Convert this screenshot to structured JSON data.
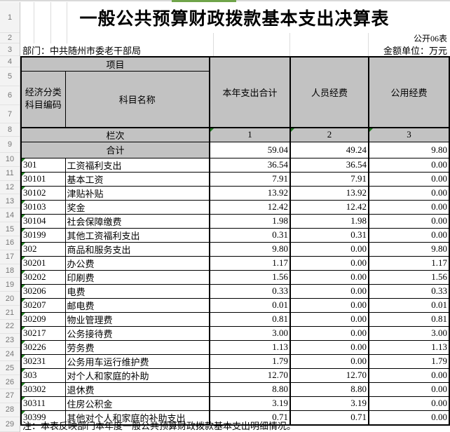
{
  "title": "一般公共预算财政拨款基本支出决算表",
  "form_label": "公开06表",
  "meta": {
    "department": "部门：中共随州市委老干部局",
    "unit": "金额单位：万元"
  },
  "table": {
    "header": {
      "project": "项目",
      "code_column": "经济分类科目编码",
      "name_column": "科目名称",
      "value_columns": [
        "本年支出合计",
        "人员经费",
        "公用经费"
      ]
    },
    "index_row": {
      "label": "栏次",
      "indices": [
        "1",
        "2",
        "3"
      ]
    },
    "total_row": {
      "label": "合计",
      "values": [
        "59.04",
        "49.24",
        "9.80"
      ]
    },
    "rows": [
      {
        "code": "301",
        "name": "工资福利支出",
        "level": 0,
        "values": [
          "36.54",
          "36.54",
          "0.00"
        ]
      },
      {
        "code": "30101",
        "name": "基本工资",
        "level": 1,
        "values": [
          "7.91",
          "7.91",
          "0.00"
        ]
      },
      {
        "code": "30102",
        "name": "津贴补贴",
        "level": 1,
        "values": [
          "13.92",
          "13.92",
          "0.00"
        ]
      },
      {
        "code": "30103",
        "name": "奖金",
        "level": 1,
        "values": [
          "12.42",
          "12.42",
          "0.00"
        ]
      },
      {
        "code": "30104",
        "name": "社会保障缴费",
        "level": 1,
        "values": [
          "1.98",
          "1.98",
          "0.00"
        ]
      },
      {
        "code": "30199",
        "name": "其他工资福利支出",
        "level": 1,
        "values": [
          "0.31",
          "0.31",
          "0.00"
        ]
      },
      {
        "code": "302",
        "name": "商品和服务支出",
        "level": 0,
        "values": [
          "9.80",
          "0.00",
          "9.80"
        ]
      },
      {
        "code": "30201",
        "name": "办公费",
        "level": 1,
        "values": [
          "1.17",
          "0.00",
          "1.17"
        ]
      },
      {
        "code": "30202",
        "name": "印刷费",
        "level": 1,
        "values": [
          "1.56",
          "0.00",
          "1.56"
        ]
      },
      {
        "code": "30206",
        "name": "电费",
        "level": 1,
        "values": [
          "0.33",
          "0.00",
          "0.33"
        ]
      },
      {
        "code": "30207",
        "name": "邮电费",
        "level": 1,
        "values": [
          "0.01",
          "0.00",
          "0.01"
        ]
      },
      {
        "code": "30209",
        "name": "物业管理费",
        "level": 1,
        "values": [
          "0.81",
          "0.00",
          "0.81"
        ]
      },
      {
        "code": "30217",
        "name": "公务接待费",
        "level": 1,
        "values": [
          "3.00",
          "0.00",
          "3.00"
        ]
      },
      {
        "code": "30226",
        "name": "劳务费",
        "level": 1,
        "values": [
          "1.13",
          "0.00",
          "1.13"
        ]
      },
      {
        "code": "30231",
        "name": "公务用车运行维护费",
        "level": 1,
        "values": [
          "1.79",
          "0.00",
          "1.79"
        ]
      },
      {
        "code": "303",
        "name": "对个人和家庭的补助",
        "level": 0,
        "values": [
          "12.70",
          "12.70",
          "0.00"
        ]
      },
      {
        "code": "30302",
        "name": "退休费",
        "level": 1,
        "values": [
          "8.80",
          "8.80",
          "0.00"
        ]
      },
      {
        "code": "30311",
        "name": "住房公积金",
        "level": 1,
        "values": [
          "3.19",
          "3.19",
          "0.00"
        ]
      },
      {
        "code": "30399",
        "name": "其他对个人和家庭的补助支出",
        "level": 1,
        "values": [
          "0.71",
          "0.71",
          "0.00"
        ]
      }
    ],
    "note": "注：本表反映部门本年度一般公共预算财政拨款基本支出明细情况。"
  },
  "gutter_rows": [
    "1",
    "2",
    "3",
    "4",
    "5",
    "6",
    "7",
    "8",
    "9",
    "10",
    "11",
    "12",
    "13",
    "14",
    "15",
    "16",
    "17",
    "18",
    "19",
    "20",
    "21",
    "22",
    "23",
    "24",
    "25",
    "26",
    "27",
    "28",
    "29"
  ],
  "colors": {
    "header_fill": "#c2c2c2",
    "accent_green": "#6fa44a",
    "error_indicator_green": "#1e7d1e",
    "grid_border": "#000000"
  }
}
